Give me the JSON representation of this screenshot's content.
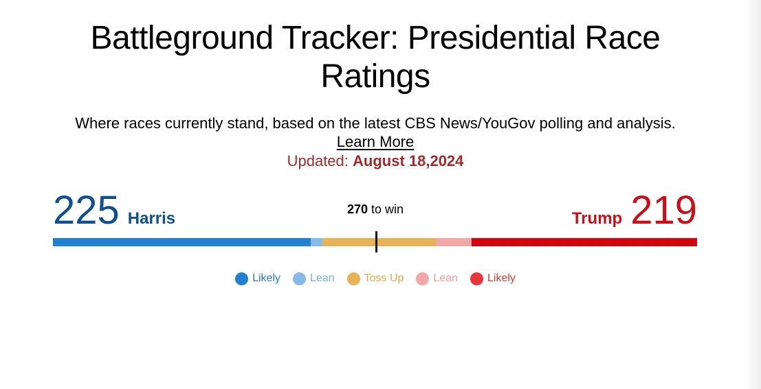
{
  "title": "Battleground Tracker: Presidential Race Ratings",
  "subtitle": "Where races currently stand, based on the latest CBS News/YouGov polling and analysis.",
  "learn_more": "Learn More",
  "updated": {
    "label": "Updated: ",
    "date": "August 18,2024"
  },
  "harris": {
    "count": "225",
    "name": "Harris"
  },
  "trump": {
    "count": "219",
    "name": "Trump"
  },
  "to_win": {
    "number": "270",
    "text": " to win"
  },
  "bar_segments": [
    {
      "key": "dem-likely",
      "fraction": 0.4004,
      "color": "#2280d0"
    },
    {
      "key": "dem-lean",
      "fraction": 0.0182,
      "color": "#86bbe9"
    },
    {
      "key": "toss-up",
      "fraction": 0.1754,
      "color": "#e8b258"
    },
    {
      "key": "rep-lean",
      "fraction": 0.0555,
      "color": "#f4a7a7"
    },
    {
      "key": "rep-likely",
      "fraction": 0.3505,
      "color": "#d1060f"
    }
  ],
  "legend": [
    {
      "label": "Likely",
      "color": "#2280d0",
      "text_color": "#2a79c0"
    },
    {
      "label": "Lean",
      "color": "#86bbe9",
      "text_color": "#7ab0df"
    },
    {
      "label": "Toss Up",
      "color": "#e8b258",
      "text_color": "#e0a94c"
    },
    {
      "label": "Lean",
      "color": "#f4a7a7",
      "text_color": "#ee9d9d"
    },
    {
      "label": "Likely",
      "color": "#e8353b",
      "text_color": "#cf3a3a"
    }
  ]
}
